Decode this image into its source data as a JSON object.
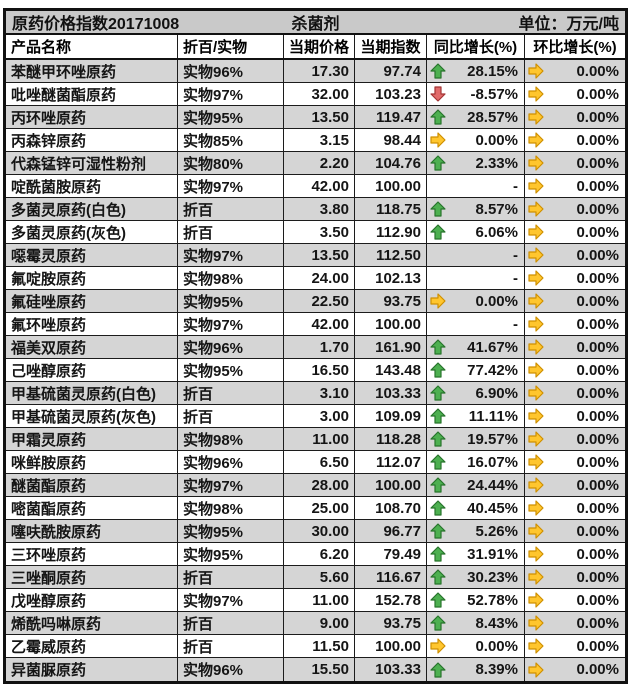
{
  "chart_data": {
    "type": "table",
    "title": "原药价格指数20171008",
    "category": "杀菌剂",
    "unit_label": "单位：万元/吨",
    "columns": [
      "产品名称",
      "折百/实物",
      "当期价格",
      "当期指数",
      "同比增长(%)",
      "环比增长(%)"
    ],
    "rows": [
      {
        "name": "苯醚甲环唑原药",
        "spec": "实物96%",
        "price": "17.30",
        "index": "97.74",
        "yoy_trend": "up",
        "yoy": "28.15%",
        "mom_trend": "flat",
        "mom": "0.00%"
      },
      {
        "name": "吡唑醚菌酯原药",
        "spec": "实物97%",
        "price": "32.00",
        "index": "103.23",
        "yoy_trend": "down",
        "yoy": "-8.57%",
        "mom_trend": "flat",
        "mom": "0.00%"
      },
      {
        "name": "丙环唑原药",
        "spec": "实物95%",
        "price": "13.50",
        "index": "119.47",
        "yoy_trend": "up",
        "yoy": "28.57%",
        "mom_trend": "flat",
        "mom": "0.00%"
      },
      {
        "name": "丙森锌原药",
        "spec": "实物85%",
        "price": "3.15",
        "index": "98.44",
        "yoy_trend": "flat",
        "yoy": "0.00%",
        "mom_trend": "flat",
        "mom": "0.00%"
      },
      {
        "name": "代森锰锌可湿性粉剂",
        "spec": "实物80%",
        "price": "2.20",
        "index": "104.76",
        "yoy_trend": "up",
        "yoy": "2.33%",
        "mom_trend": "flat",
        "mom": "0.00%"
      },
      {
        "name": "啶酰菌胺原药",
        "spec": "实物97%",
        "price": "42.00",
        "index": "100.00",
        "yoy_trend": "none",
        "yoy": "-",
        "mom_trend": "flat",
        "mom": "0.00%"
      },
      {
        "name": "多菌灵原药(白色)",
        "spec": "折百",
        "price": "3.80",
        "index": "118.75",
        "yoy_trend": "up",
        "yoy": "8.57%",
        "mom_trend": "flat",
        "mom": "0.00%"
      },
      {
        "name": "多菌灵原药(灰色)",
        "spec": "折百",
        "price": "3.50",
        "index": "112.90",
        "yoy_trend": "up",
        "yoy": "6.06%",
        "mom_trend": "flat",
        "mom": "0.00%"
      },
      {
        "name": "噁霉灵原药",
        "spec": "实物97%",
        "price": "13.50",
        "index": "112.50",
        "yoy_trend": "none",
        "yoy": "-",
        "mom_trend": "flat",
        "mom": "0.00%"
      },
      {
        "name": "氟啶胺原药",
        "spec": "实物98%",
        "price": "24.00",
        "index": "102.13",
        "yoy_trend": "none",
        "yoy": "-",
        "mom_trend": "flat",
        "mom": "0.00%"
      },
      {
        "name": "氟硅唑原药",
        "spec": "实物95%",
        "price": "22.50",
        "index": "93.75",
        "yoy_trend": "flat",
        "yoy": "0.00%",
        "mom_trend": "flat",
        "mom": "0.00%"
      },
      {
        "name": "氟环唑原药",
        "spec": "实物97%",
        "price": "42.00",
        "index": "100.00",
        "yoy_trend": "none",
        "yoy": "-",
        "mom_trend": "flat",
        "mom": "0.00%"
      },
      {
        "name": "福美双原药",
        "spec": "实物96%",
        "price": "1.70",
        "index": "161.90",
        "yoy_trend": "up",
        "yoy": "41.67%",
        "mom_trend": "flat",
        "mom": "0.00%"
      },
      {
        "name": "己唑醇原药",
        "spec": "实物95%",
        "price": "16.50",
        "index": "143.48",
        "yoy_trend": "up",
        "yoy": "77.42%",
        "mom_trend": "flat",
        "mom": "0.00%"
      },
      {
        "name": "甲基硫菌灵原药(白色)",
        "spec": "折百",
        "price": "3.10",
        "index": "103.33",
        "yoy_trend": "up",
        "yoy": "6.90%",
        "mom_trend": "flat",
        "mom": "0.00%"
      },
      {
        "name": "甲基硫菌灵原药(灰色)",
        "spec": "折百",
        "price": "3.00",
        "index": "109.09",
        "yoy_trend": "up",
        "yoy": "11.11%",
        "mom_trend": "flat",
        "mom": "0.00%"
      },
      {
        "name": "甲霜灵原药",
        "spec": "实物98%",
        "price": "11.00",
        "index": "118.28",
        "yoy_trend": "up",
        "yoy": "19.57%",
        "mom_trend": "flat",
        "mom": "0.00%"
      },
      {
        "name": "咪鲜胺原药",
        "spec": "实物96%",
        "price": "6.50",
        "index": "112.07",
        "yoy_trend": "up",
        "yoy": "16.07%",
        "mom_trend": "flat",
        "mom": "0.00%"
      },
      {
        "name": "醚菌酯原药",
        "spec": "实物97%",
        "price": "28.00",
        "index": "100.00",
        "yoy_trend": "up",
        "yoy": "24.44%",
        "mom_trend": "flat",
        "mom": "0.00%"
      },
      {
        "name": "嘧菌酯原药",
        "spec": "实物98%",
        "price": "25.00",
        "index": "108.70",
        "yoy_trend": "up",
        "yoy": "40.45%",
        "mom_trend": "flat",
        "mom": "0.00%"
      },
      {
        "name": "噻呋酰胺原药",
        "spec": "实物95%",
        "price": "30.00",
        "index": "96.77",
        "yoy_trend": "up",
        "yoy": "5.26%",
        "mom_trend": "flat",
        "mom": "0.00%"
      },
      {
        "name": "三环唑原药",
        "spec": "实物95%",
        "price": "6.20",
        "index": "79.49",
        "yoy_trend": "up",
        "yoy": "31.91%",
        "mom_trend": "flat",
        "mom": "0.00%"
      },
      {
        "name": "三唑酮原药",
        "spec": "折百",
        "price": "5.60",
        "index": "116.67",
        "yoy_trend": "up",
        "yoy": "30.23%",
        "mom_trend": "flat",
        "mom": "0.00%"
      },
      {
        "name": "戊唑醇原药",
        "spec": "实物97%",
        "price": "11.00",
        "index": "152.78",
        "yoy_trend": "up",
        "yoy": "52.78%",
        "mom_trend": "flat",
        "mom": "0.00%"
      },
      {
        "name": "烯酰吗啉原药",
        "spec": "折百",
        "price": "9.00",
        "index": "93.75",
        "yoy_trend": "up",
        "yoy": "8.43%",
        "mom_trend": "flat",
        "mom": "0.00%"
      },
      {
        "name": "乙霉威原药",
        "spec": "折百",
        "price": "11.50",
        "index": "100.00",
        "yoy_trend": "flat",
        "yoy": "0.00%",
        "mom_trend": "flat",
        "mom": "0.00%"
      },
      {
        "name": "异菌脲原药",
        "spec": "实物96%",
        "price": "15.50",
        "index": "103.33",
        "yoy_trend": "up",
        "yoy": "8.39%",
        "mom_trend": "flat",
        "mom": "0.00%"
      }
    ]
  },
  "colors": {
    "stripe_gray": "#d5d5d5",
    "title_bar_gray": "#c9c9c9",
    "up_green_fill": "#4db050",
    "up_green_stroke": "#27742b",
    "down_red_fill": "#e26b6b",
    "down_red_stroke": "#a33434",
    "flat_yellow_fill": "#ffc62e",
    "flat_yellow_stroke": "#cf9000",
    "grid_line": "#1c1c1c"
  }
}
